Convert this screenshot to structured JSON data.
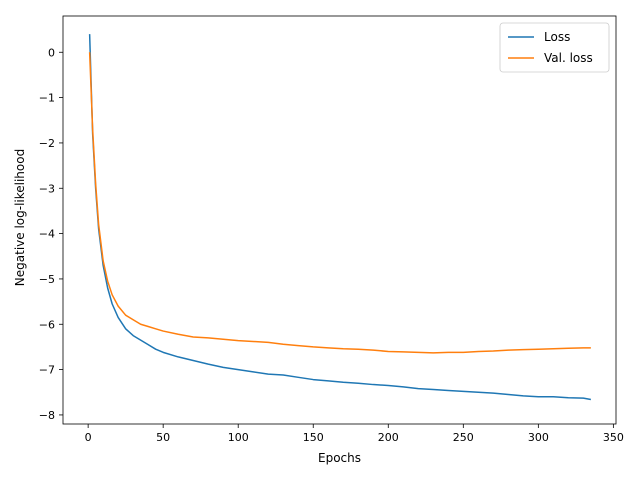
{
  "chart_data": {
    "type": "line",
    "title": "",
    "xlabel": "Epochs",
    "ylabel": "Negative log-likelihood",
    "xlim": [
      -16.75,
      351.75
    ],
    "ylim": [
      -8.2,
      0.8
    ],
    "xticks": [
      0,
      50,
      100,
      150,
      200,
      250,
      300,
      350
    ],
    "yticks": [
      0,
      -1,
      -2,
      -3,
      -4,
      -5,
      -6,
      -7,
      -8
    ],
    "xtick_labels": [
      "0",
      "50",
      "100",
      "150",
      "200",
      "250",
      "300",
      "350"
    ],
    "ytick_labels": [
      "0",
      "−1",
      "−2",
      "−3",
      "−4",
      "−5",
      "−6",
      "−7",
      "−8"
    ],
    "grid": false,
    "legend_position": "top-right",
    "x": [
      1,
      3,
      5,
      7,
      10,
      13,
      16,
      20,
      25,
      30,
      35,
      40,
      45,
      50,
      60,
      70,
      80,
      90,
      100,
      110,
      120,
      130,
      140,
      150,
      160,
      170,
      180,
      190,
      200,
      210,
      220,
      230,
      240,
      250,
      260,
      270,
      280,
      290,
      300,
      310,
      320,
      330,
      335
    ],
    "series": [
      {
        "name": "Loss",
        "color": "#1f77b4",
        "values": [
          0.4,
          -1.8,
          -3.0,
          -3.9,
          -4.7,
          -5.2,
          -5.55,
          -5.85,
          -6.1,
          -6.25,
          -6.35,
          -6.45,
          -6.55,
          -6.62,
          -6.72,
          -6.8,
          -6.88,
          -6.95,
          -7.0,
          -7.05,
          -7.1,
          -7.12,
          -7.17,
          -7.22,
          -7.25,
          -7.28,
          -7.3,
          -7.33,
          -7.35,
          -7.38,
          -7.42,
          -7.44,
          -7.46,
          -7.48,
          -7.5,
          -7.52,
          -7.55,
          -7.58,
          -7.6,
          -7.6,
          -7.62,
          -7.63,
          -7.66
        ]
      },
      {
        "name": "Val. loss",
        "color": "#ff7f0e",
        "values": [
          0.0,
          -1.7,
          -2.9,
          -3.8,
          -4.6,
          -5.05,
          -5.35,
          -5.6,
          -5.8,
          -5.9,
          -6.0,
          -6.05,
          -6.1,
          -6.15,
          -6.22,
          -6.28,
          -6.3,
          -6.33,
          -6.36,
          -6.38,
          -6.4,
          -6.44,
          -6.47,
          -6.5,
          -6.52,
          -6.54,
          -6.55,
          -6.57,
          -6.6,
          -6.61,
          -6.62,
          -6.63,
          -6.62,
          -6.62,
          -6.6,
          -6.59,
          -6.57,
          -6.56,
          -6.55,
          -6.54,
          -6.53,
          -6.52,
          -6.52
        ]
      }
    ]
  }
}
